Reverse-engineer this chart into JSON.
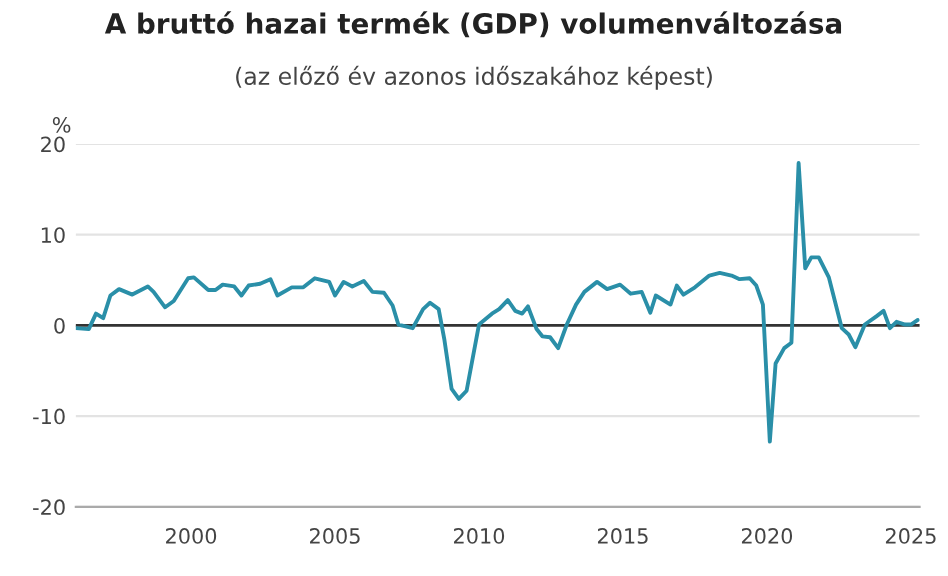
{
  "chart_data": {
    "type": "line",
    "title": "A bruttó hazai termék (GDP) volumenváltozása",
    "subtitle": "(az előző év azonos időszakához képest)",
    "ylabel": "%",
    "x": [
      1996.0,
      1996.45,
      1996.7,
      1996.95,
      1997.2,
      1997.5,
      1997.96,
      1998.5,
      1998.7,
      1999.1,
      1999.4,
      1999.9,
      2000.1,
      2000.6,
      2000.85,
      2001.1,
      2001.5,
      2001.75,
      2002.0,
      2002.4,
      2002.76,
      2003.0,
      2003.5,
      2003.9,
      2004.3,
      2004.8,
      2005.0,
      2005.3,
      2005.6,
      2006.0,
      2006.3,
      2006.7,
      2007.0,
      2007.2,
      2007.7,
      2008.06,
      2008.3,
      2008.6,
      2008.8,
      2009.05,
      2009.3,
      2009.57,
      2010.0,
      2010.45,
      2010.7,
      2011.0,
      2011.26,
      2011.5,
      2011.7,
      2012.0,
      2012.2,
      2012.47,
      2012.75,
      2013.05,
      2013.37,
      2013.66,
      2014.1,
      2014.45,
      2014.9,
      2015.27,
      2015.65,
      2015.95,
      2016.14,
      2016.65,
      2016.87,
      2017.1,
      2017.5,
      2018.0,
      2018.36,
      2018.77,
      2019.05,
      2019.4,
      2019.63,
      2019.86,
      2020.1,
      2020.3,
      2020.6,
      2020.85,
      2021.1,
      2021.33,
      2021.54,
      2021.8,
      2022.15,
      2022.6,
      2022.84,
      2023.07,
      2023.4,
      2023.8,
      2024.05,
      2024.27,
      2024.5,
      2024.8,
      2025.0,
      2025.24
    ],
    "series": [
      {
        "color": "#2a8fa8",
        "values": [
          -0.3,
          -0.4,
          1.3,
          0.8,
          3.3,
          4.0,
          3.4,
          4.3,
          3.7,
          2.0,
          2.7,
          5.2,
          5.3,
          3.9,
          3.9,
          4.5,
          4.3,
          3.3,
          4.4,
          4.6,
          5.1,
          3.3,
          4.2,
          4.2,
          5.2,
          4.8,
          3.3,
          4.8,
          4.3,
          4.9,
          3.7,
          3.6,
          2.2,
          0.1,
          -0.3,
          1.8,
          2.5,
          1.8,
          -1.6,
          -7.0,
          -8.1,
          -7.2,
          0.1,
          1.3,
          1.8,
          2.8,
          1.6,
          1.3,
          2.1,
          -0.4,
          -1.2,
          -1.3,
          -2.5,
          0.1,
          2.3,
          3.7,
          4.8,
          4.0,
          4.5,
          3.5,
          3.7,
          1.4,
          3.3,
          2.3,
          4.4,
          3.4,
          4.2,
          5.5,
          5.8,
          5.5,
          5.1,
          5.2,
          4.4,
          2.3,
          -12.8,
          -4.2,
          -2.5,
          -1.9,
          17.9,
          6.3,
          7.5,
          7.5,
          5.3,
          -0.3,
          -1.0,
          -2.4,
          0.1,
          1.0,
          1.6,
          -0.3,
          0.4,
          0.1,
          0.1,
          0.6
        ]
      }
    ],
    "xlim": [
      1996,
      2025.3
    ],
    "xticks": [
      2000,
      2005,
      2010,
      2015,
      2020,
      2025
    ],
    "ylim": [
      -20,
      20
    ],
    "yticks": [
      -20,
      -10,
      0,
      10,
      20
    ],
    "grid": "y",
    "ref_lines": [
      {
        "axis": "y",
        "value": 0,
        "color": "#333333"
      }
    ]
  }
}
